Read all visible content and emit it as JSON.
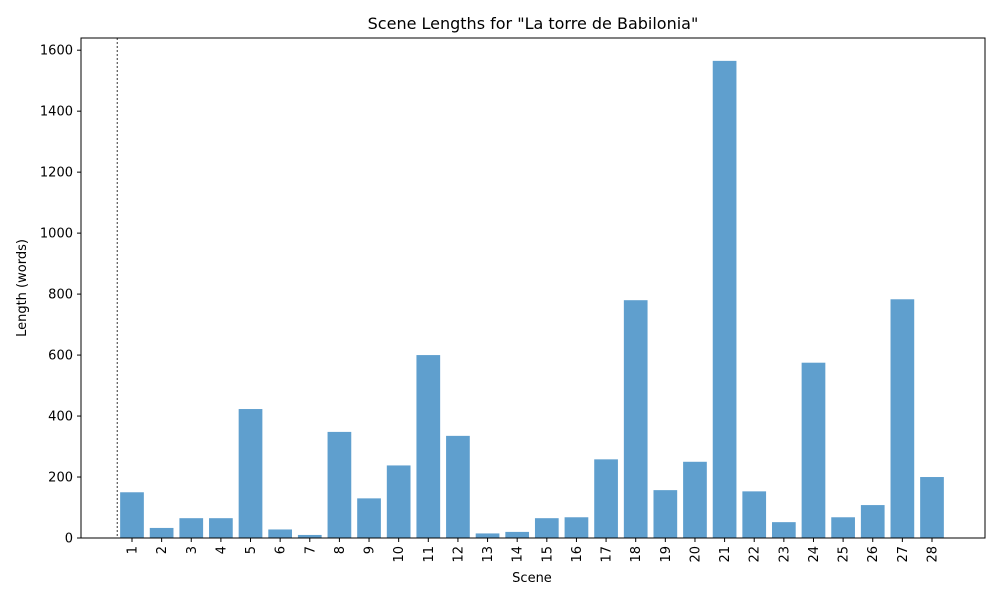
{
  "chart_data": {
    "type": "bar",
    "title": "Scene Lengths for \"La torre de Babilonia\"",
    "xlabel": "Scene",
    "ylabel": "Length (words)",
    "categories": [
      "1",
      "2",
      "3",
      "4",
      "5",
      "6",
      "7",
      "8",
      "9",
      "10",
      "11",
      "12",
      "13",
      "14",
      "15",
      "16",
      "17",
      "18",
      "19",
      "20",
      "21",
      "22",
      "23",
      "24",
      "25",
      "26",
      "27",
      "28"
    ],
    "values": [
      150,
      33,
      65,
      65,
      423,
      28,
      10,
      348,
      130,
      238,
      600,
      335,
      15,
      20,
      65,
      68,
      258,
      780,
      157,
      250,
      1565,
      153,
      52,
      575,
      68,
      108,
      783,
      200
    ],
    "ylim": [
      0,
      1640
    ],
    "yticks": [
      0,
      200,
      400,
      600,
      800,
      1000,
      1200,
      1400,
      1600
    ],
    "bar_color": "#5f9fce",
    "grid": false,
    "reference_line": {
      "style": "dashed",
      "position": "left of scene 1"
    }
  }
}
